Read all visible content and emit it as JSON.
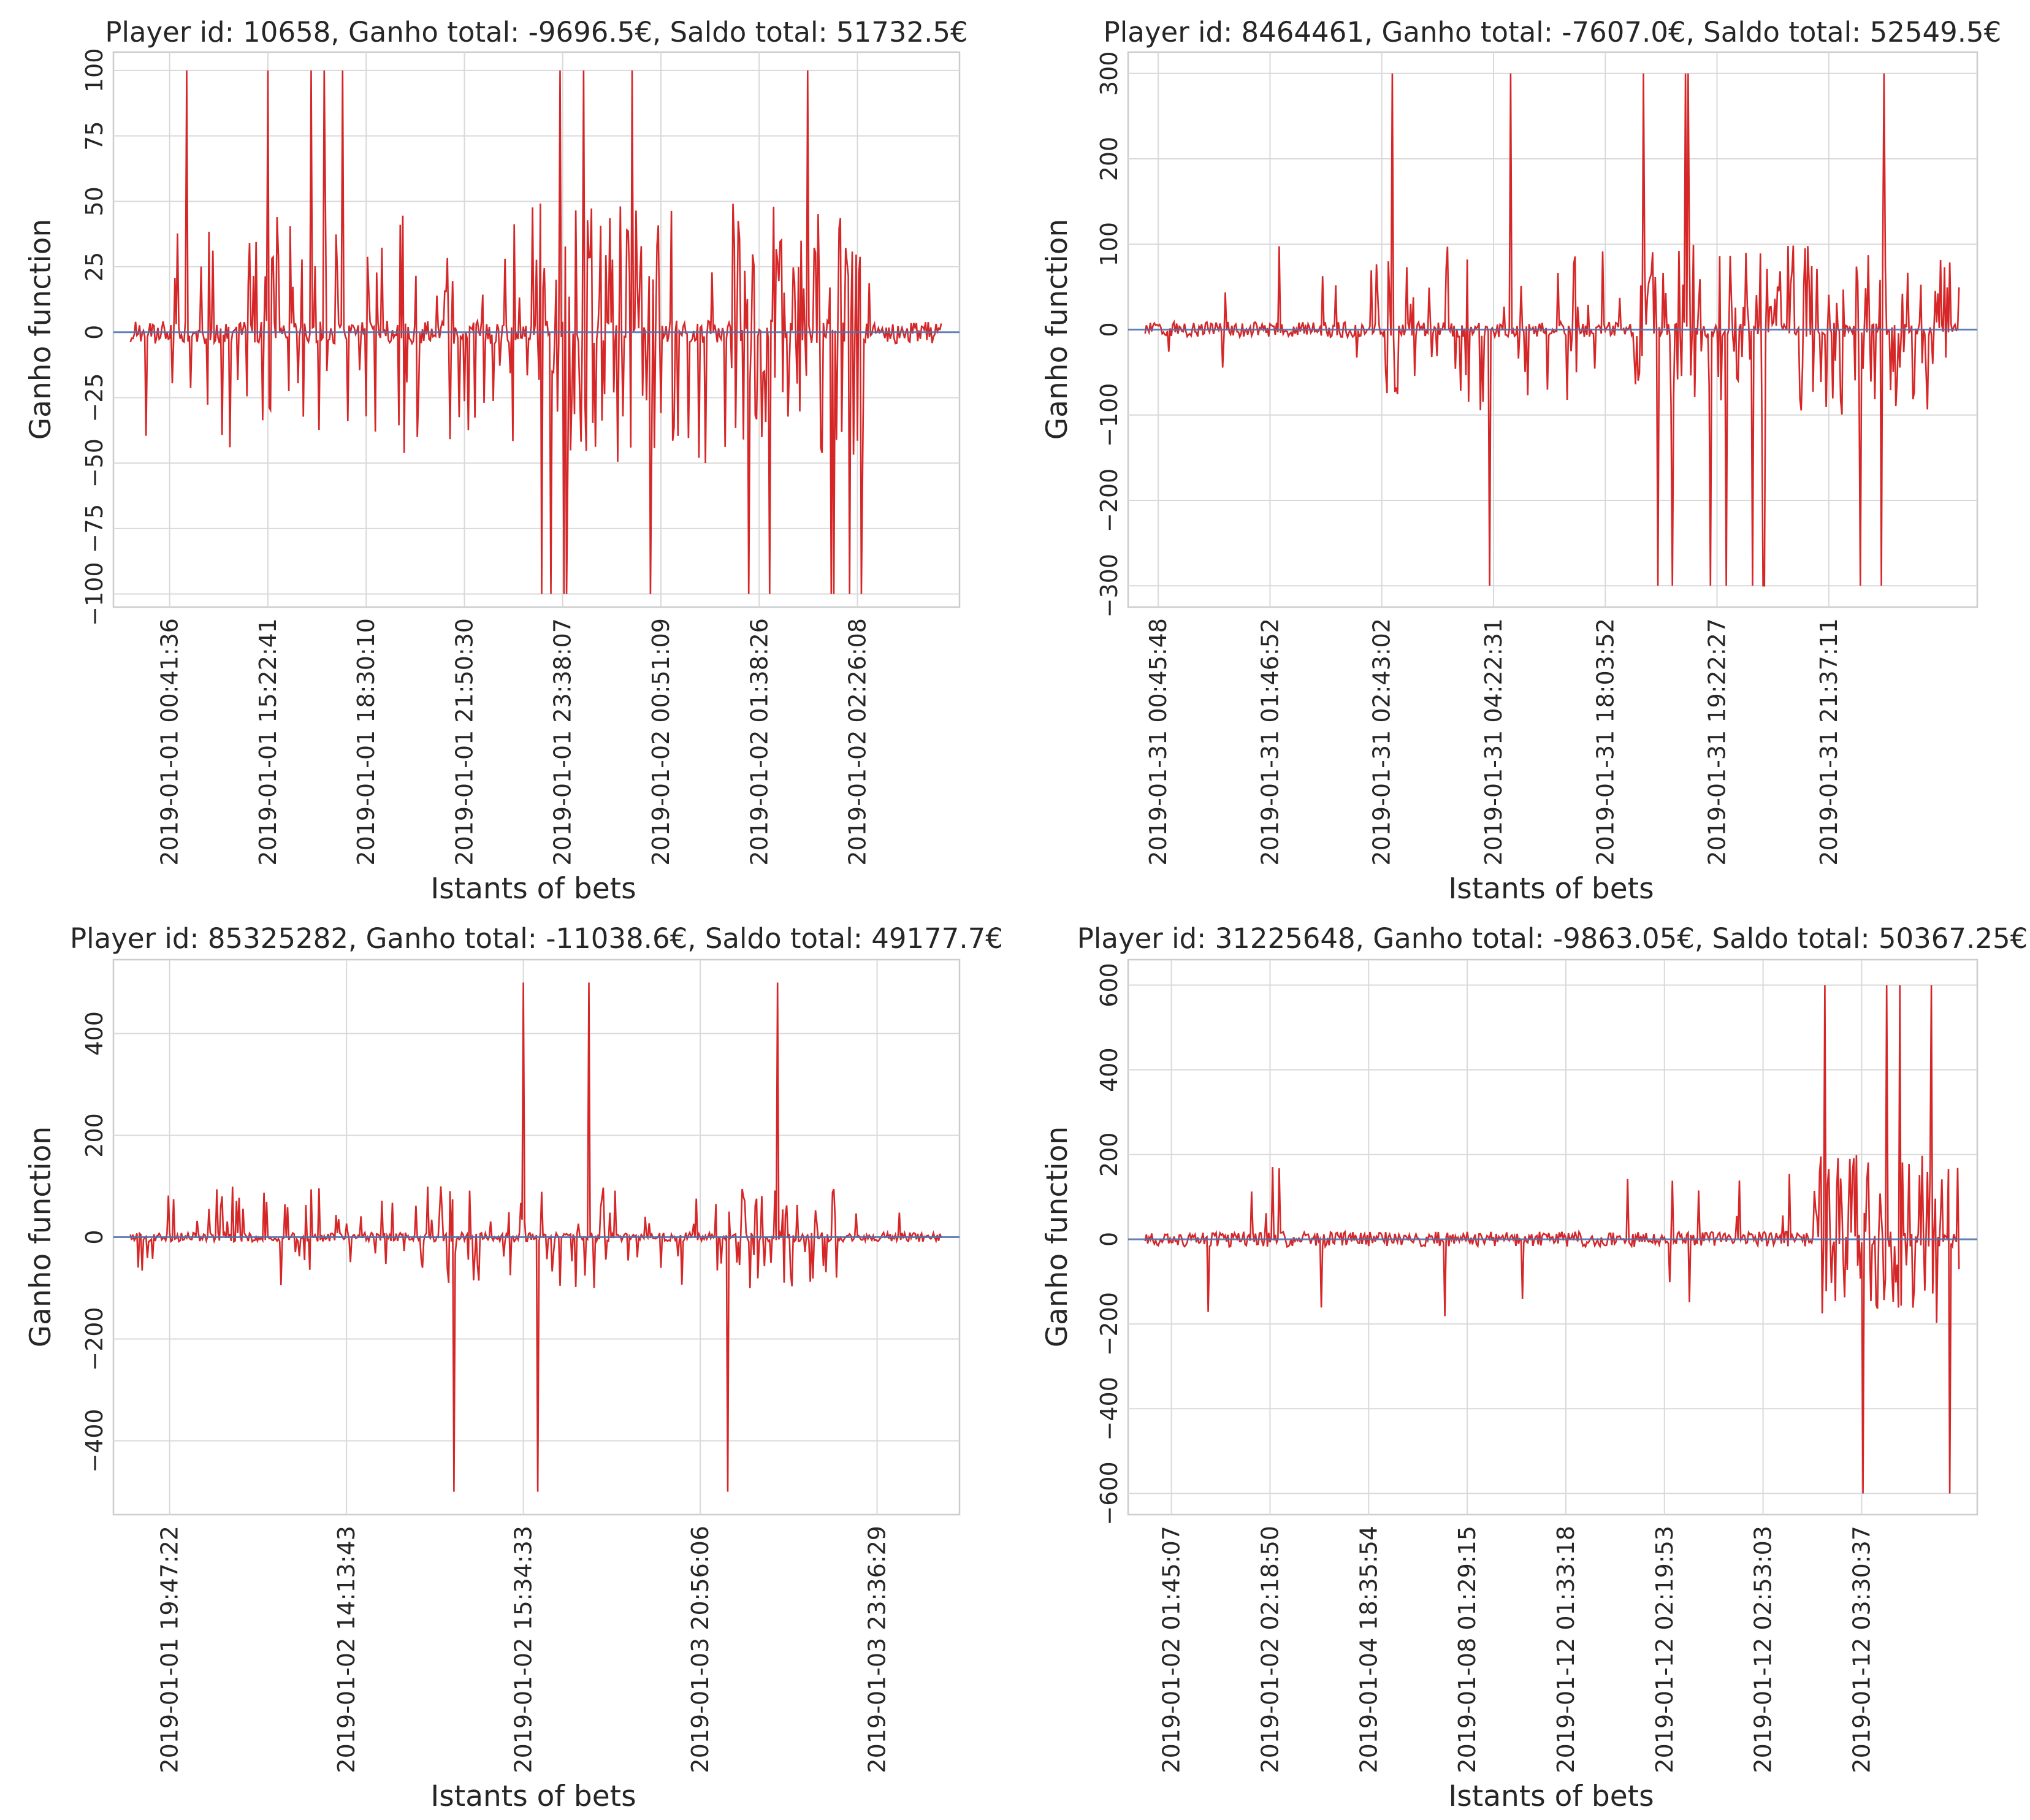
{
  "colors": {
    "trace": "#d62728",
    "zero_line": "#4c72b0",
    "grid": "#d9d9d9",
    "background": "#ffffff"
  },
  "chart_data": [
    {
      "type": "line",
      "title": "Player id: 10658, Ganho total: -9696.5€, Saldo total: 51732.5€",
      "xlabel": "Istants of bets",
      "ylabel": "Ganho function",
      "ylim": [
        -105,
        107
      ],
      "yticks": [
        -100,
        -75,
        -50,
        -25,
        0,
        25,
        50,
        75,
        100
      ],
      "ytick_labels": [
        "−100",
        "−75",
        "−50",
        "−25",
        "0",
        "25",
        "50",
        "75",
        "100"
      ],
      "xlim": [
        0,
        620
      ],
      "xticks": [
        30,
        105,
        180,
        255,
        330,
        405,
        480,
        555
      ],
      "xtick_labels": [
        "2019-01-01 00:41:36",
        "2019-01-01 15:22:41",
        "2019-01-01 18:30:10",
        "2019-01-01 21:50:30",
        "2019-01-01 23:38:07",
        "2019-01-02 00:51:09",
        "2019-01-02 01:38:26",
        "2019-01-02 02:26:08"
      ],
      "series": [
        {
          "name": "Ganho",
          "n_bets": 620,
          "bet_size": 50,
          "spike_max": 100,
          "spike_min": -100,
          "seed": 10658
        }
      ]
    },
    {
      "type": "line",
      "title": "Player id: 8464461, Ganho total: -7607.0€, Saldo total: 52549.5€",
      "xlabel": "Istants of bets",
      "ylabel": "Ganho function",
      "ylim": [
        -325,
        325
      ],
      "yticks": [
        -300,
        -200,
        -100,
        0,
        100,
        200,
        300
      ],
      "ytick_labels": [
        "−300",
        "−200",
        "−100",
        "0",
        "100",
        "200",
        "300"
      ],
      "xlim": [
        0,
        620
      ],
      "xticks": [
        10,
        95,
        180,
        265,
        350,
        435,
        520
      ],
      "xtick_labels": [
        "2019-01-31 00:45:48",
        "2019-01-31 01:46:52",
        "2019-01-31 02:43:02",
        "2019-01-31 04:22:31",
        "2019-01-31 18:03:52",
        "2019-01-31 19:22:27",
        "2019-01-31 21:37:11"
      ],
      "series": [
        {
          "name": "Ganho",
          "n_bets": 620,
          "bet_size": 100,
          "spike_max": 300,
          "spike_min": -300,
          "seed": 8464461
        }
      ]
    },
    {
      "type": "line",
      "title": "Player id: 85325282, Ganho total: -11038.6€, Saldo total: 49177.7€",
      "xlabel": "Istants of bets",
      "ylabel": "Ganho function",
      "ylim": [
        -545,
        545
      ],
      "yticks": [
        -400,
        -200,
        0,
        200,
        400
      ],
      "ytick_labels": [
        "−400",
        "−200",
        "0",
        "200",
        "400"
      ],
      "xlim": [
        0,
        620
      ],
      "xticks": [
        30,
        165,
        300,
        435,
        570
      ],
      "xtick_labels": [
        "2019-01-01 19:47:22",
        "2019-01-02 14:13:43",
        "2019-01-02 15:34:33",
        "2019-01-03 20:56:06",
        "2019-01-03 23:36:29"
      ],
      "series": [
        {
          "name": "Ganho",
          "n_bets": 620,
          "bet_size": 100,
          "spike_max": 500,
          "spike_min": -500,
          "seed": 85325282
        }
      ]
    },
    {
      "type": "line",
      "title": "Player id: 31225648, Ganho total: -9863.05€, Saldo total: 50367.25€",
      "xlabel": "Istants of bets",
      "ylabel": "Ganho function",
      "ylim": [
        -650,
        660
      ],
      "yticks": [
        -600,
        -400,
        -200,
        0,
        200,
        400,
        600
      ],
      "ytick_labels": [
        "−600",
        "−400",
        "−200",
        "0",
        "200",
        "400",
        "600"
      ],
      "xlim": [
        0,
        620
      ],
      "xticks": [
        20,
        95,
        170,
        245,
        320,
        395,
        470,
        545
      ],
      "xtick_labels": [
        "2019-01-02 01:45:07",
        "2019-01-02 02:18:50",
        "2019-01-04 18:35:54",
        "2019-01-08 01:29:15",
        "2019-01-12 01:33:18",
        "2019-01-12 02:19:53",
        "2019-01-12 02:53:03",
        "2019-01-12 03:30:37"
      ],
      "series": [
        {
          "name": "Ganho",
          "n_bets": 620,
          "bet_size": 200,
          "spike_max": 600,
          "spike_min": -600,
          "seed": 31225648
        }
      ]
    }
  ]
}
